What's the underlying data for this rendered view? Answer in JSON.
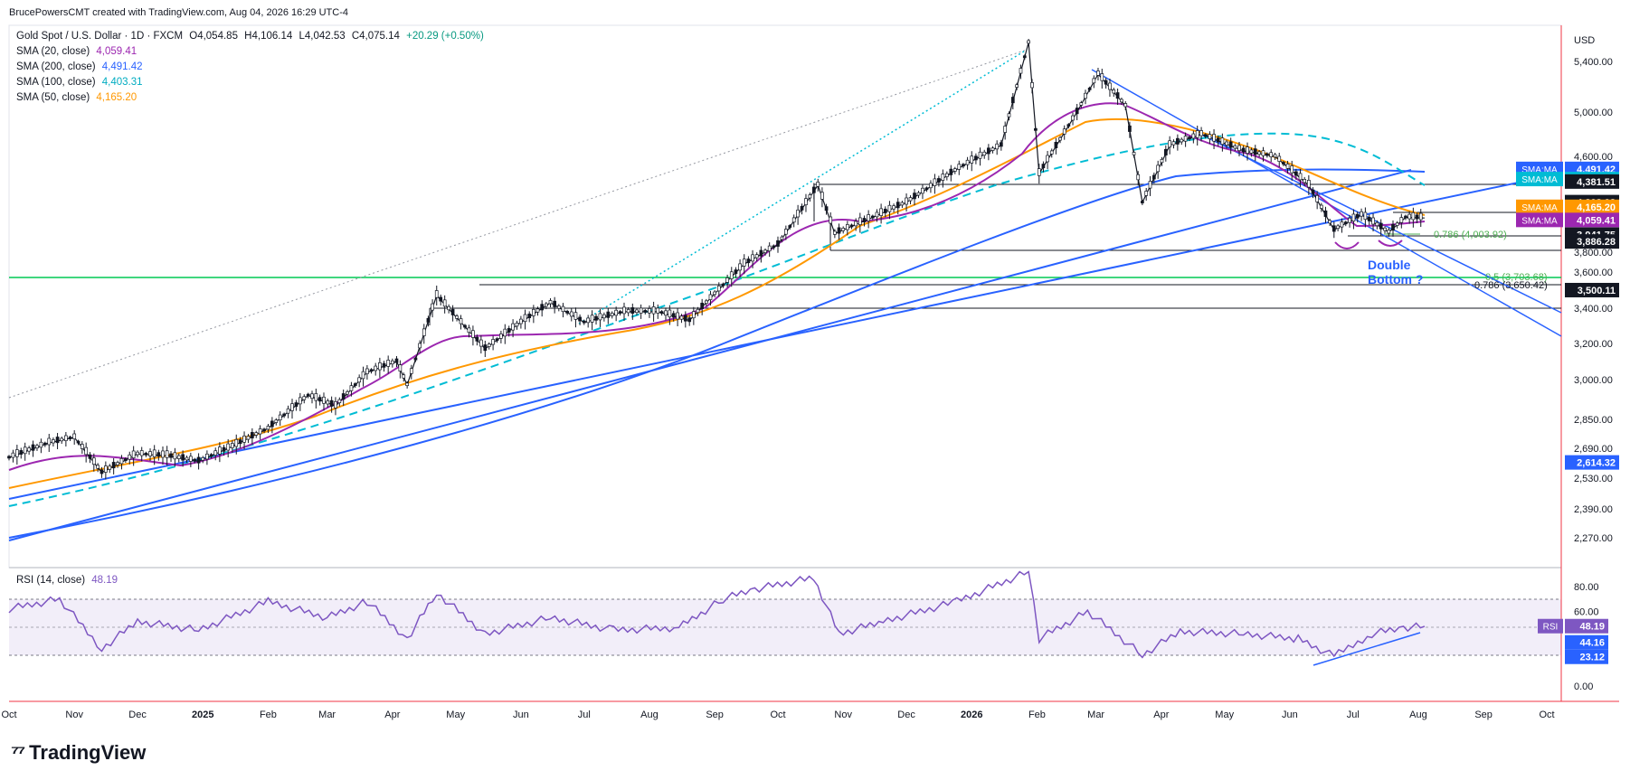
{
  "header": "BrucePowersCMT created with TradingView.com, Aug 04, 2026 16:29 UTC-4",
  "symbol": {
    "name": "Gold Spot / U.S. Dollar · 1D · FXCM",
    "o": "O4,054.85",
    "h": "H4,106.14",
    "l": "L4,042.53",
    "c": "C4,075.14",
    "chg": "+20.29 (+0.50%)"
  },
  "indicators": [
    {
      "label": "SMA (20, close)",
      "value": "4,059.41",
      "color": "#9c27b0"
    },
    {
      "label": "SMA (200, close)",
      "value": "4,491.42",
      "color": "#2962ff"
    },
    {
      "label": "SMA (100, close)",
      "value": "4,403.31",
      "color": "#00bcd4"
    },
    {
      "label": "SMA (50, close)",
      "value": "4,165.20",
      "color": "#ff9800"
    }
  ],
  "currency": "USD",
  "annotation": {
    "line1": "Double",
    "line2": "Bottom ?"
  },
  "fib": [
    {
      "label": "0.786 (4,003.92)",
      "color": "#4caf50"
    },
    {
      "label": "0.5 (3,703.68)",
      "color": "#4caf50"
    },
    {
      "label": "0.786 (3,650.42)",
      "color": "#131722"
    }
  ],
  "price_labels": [
    {
      "text": "SMA:MA",
      "value": "4,491.42",
      "color": "#2962ff"
    },
    {
      "text": "SMA:MA",
      "value": "4,403.31",
      "color": "#00bcd4"
    },
    {
      "text": "",
      "value": "4,381.51",
      "color": "#131722"
    },
    {
      "text": "",
      "value": "4,203.08",
      "color": "#131722"
    },
    {
      "text": "",
      "value": "4,165.97",
      "color": "#131722"
    },
    {
      "text": "SMA:MA",
      "value": "4,165.20",
      "color": "#ff9800"
    },
    {
      "text": "SMA:MA",
      "value": "4,059.41",
      "color": "#9c27b0"
    },
    {
      "text": "",
      "value": "3,941.75",
      "color": "#131722"
    },
    {
      "text": "",
      "value": "3,886.28",
      "color": "#131722"
    },
    {
      "text": "",
      "value": "3,500.11",
      "color": "#131722"
    },
    {
      "text": "",
      "value": "2,614.32",
      "color": "#2962ff"
    }
  ],
  "rsi": {
    "label": "RSI (14, close)",
    "value": "48.19",
    "tag": "RSI",
    "levels": [
      "44.16",
      "23.12"
    ]
  },
  "footer": "TradingView",
  "chart_data": {
    "type": "line",
    "title": "Gold Spot / U.S. Dollar · 1D · FXCM",
    "y_axis_ticks": [
      "5,400.00",
      "5,000.00",
      "4,600.00",
      "4,200.00",
      "3,800.00",
      "3,600.00",
      "3,400.00",
      "3,200.00",
      "3,000.00",
      "2,850.00",
      "2,690.00",
      "2,530.00",
      "2,390.00",
      "2,270.00"
    ],
    "rsi_axis_ticks": [
      "80.00",
      "60.00",
      "40.00",
      "20.00",
      "0.00"
    ],
    "x_axis_ticks": [
      "Oct",
      "Nov",
      "Dec",
      "2025",
      "Feb",
      "Mar",
      "Apr",
      "May",
      "Jun",
      "Jul",
      "Aug",
      "Sep",
      "Oct",
      "Nov",
      "Dec",
      "2026",
      "Feb",
      "Mar",
      "Apr",
      "May",
      "Jun",
      "Jul",
      "Aug",
      "Sep",
      "Oct"
    ],
    "x_axis_bold": [
      "2025",
      "2026"
    ],
    "grid": false,
    "legend_placement": "top-left",
    "price_path": [
      [
        "2024-10-01",
        2640
      ],
      [
        "2024-10-20",
        2720
      ],
      [
        "2024-11-01",
        2750
      ],
      [
        "2024-11-14",
        2560
      ],
      [
        "2024-12-01",
        2660
      ],
      [
        "2024-12-15",
        2650
      ],
      [
        "2024-12-30",
        2620
      ],
      [
        "2025-01-15",
        2700
      ],
      [
        "2025-02-01",
        2800
      ],
      [
        "2025-02-20",
        2940
      ],
      [
        "2025-03-05",
        2900
      ],
      [
        "2025-03-20",
        3040
      ],
      [
        "2025-04-03",
        3100
      ],
      [
        "2025-04-08",
        2980
      ],
      [
        "2025-04-22",
        3470
      ],
      [
        "2025-05-15",
        3170
      ],
      [
        "2025-06-01",
        3320
      ],
      [
        "2025-06-15",
        3430
      ],
      [
        "2025-07-01",
        3320
      ],
      [
        "2025-07-20",
        3380
      ],
      [
        "2025-08-05",
        3380
      ],
      [
        "2025-08-20",
        3330
      ],
      [
        "2025-09-01",
        3480
      ],
      [
        "2025-09-15",
        3680
      ],
      [
        "2025-10-01",
        3860
      ],
      [
        "2025-10-20",
        4350
      ],
      [
        "2025-10-28",
        3950
      ],
      [
        "2025-11-15",
        4080
      ],
      [
        "2025-12-01",
        4200
      ],
      [
        "2025-12-26",
        4500
      ],
      [
        "2026-01-15",
        4700
      ],
      [
        "2026-01-28",
        5550
      ],
      [
        "2026-02-02",
        4450
      ],
      [
        "2026-02-20",
        5000
      ],
      [
        "2026-03-02",
        5300
      ],
      [
        "2026-03-15",
        5050
      ],
      [
        "2026-03-23",
        4200
      ],
      [
        "2026-04-05",
        4700
      ],
      [
        "2026-04-20",
        4800
      ],
      [
        "2026-05-10",
        4650
      ],
      [
        "2026-05-25",
        4600
      ],
      [
        "2026-06-10",
        4350
      ],
      [
        "2026-06-22",
        3980
      ],
      [
        "2026-07-05",
        4100
      ],
      [
        "2026-07-18",
        3960
      ],
      [
        "2026-07-26",
        4080
      ],
      [
        "2026-08-04",
        4075
      ]
    ],
    "rsi_path": [
      [
        "2024-10-01",
        62
      ],
      [
        "2024-10-25",
        70
      ],
      [
        "2024-11-14",
        30
      ],
      [
        "2024-12-01",
        52
      ],
      [
        "2024-12-30",
        45
      ],
      [
        "2025-02-01",
        68
      ],
      [
        "2025-03-01",
        55
      ],
      [
        "2025-03-20",
        68
      ],
      [
        "2025-04-08",
        38
      ],
      [
        "2025-04-22",
        75
      ],
      [
        "2025-05-15",
        42
      ],
      [
        "2025-06-15",
        55
      ],
      [
        "2025-07-15",
        45
      ],
      [
        "2025-08-15",
        47
      ],
      [
        "2025-09-05",
        70
      ],
      [
        "2025-09-20",
        78
      ],
      [
        "2025-10-18",
        87
      ],
      [
        "2025-10-30",
        42
      ],
      [
        "2025-11-20",
        52
      ],
      [
        "2025-12-25",
        68
      ],
      [
        "2026-01-28",
        92
      ],
      [
        "2026-02-02",
        38
      ],
      [
        "2026-02-25",
        60
      ],
      [
        "2026-03-23",
        25
      ],
      [
        "2026-04-10",
        44
      ],
      [
        "2026-05-10",
        42
      ],
      [
        "2026-06-05",
        38
      ],
      [
        "2026-06-22",
        24
      ],
      [
        "2026-07-10",
        42
      ],
      [
        "2026-07-25",
        47
      ],
      [
        "2026-08-04",
        48
      ]
    ]
  }
}
